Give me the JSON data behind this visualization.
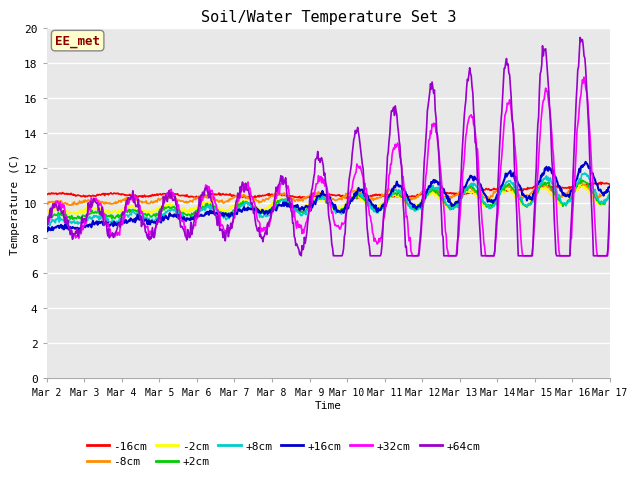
{
  "title": "Soil/Water Temperature Set 3",
  "xlabel": "Time",
  "ylabel": "Temperature (C)",
  "ylim": [
    0,
    20
  ],
  "yticks": [
    0,
    2,
    4,
    6,
    8,
    10,
    12,
    14,
    16,
    18,
    20
  ],
  "x_labels": [
    "Mar 2",
    "Mar 3",
    "Mar 4",
    "Mar 5",
    "Mar 6",
    "Mar 7",
    "Mar 8",
    "Mar 9",
    "Mar 10",
    "Mar 11",
    "Mar 12",
    "Mar 13",
    "Mar 14",
    "Mar 15",
    "Mar 16",
    "Mar 17"
  ],
  "annotation_text": "EE_met",
  "annotation_color": "#8B0000",
  "annotation_bg": "#FFFFCC",
  "series": {
    "-16cm": {
      "color": "#FF0000",
      "lw": 1.2
    },
    "-8cm": {
      "color": "#FF8C00",
      "lw": 1.2
    },
    "-2cm": {
      "color": "#FFFF00",
      "lw": 1.2
    },
    "+2cm": {
      "color": "#00CC00",
      "lw": 1.2
    },
    "+8cm": {
      "color": "#00CCCC",
      "lw": 1.2
    },
    "+16cm": {
      "color": "#0000CC",
      "lw": 1.5
    },
    "+32cm": {
      "color": "#FF00FF",
      "lw": 1.2
    },
    "+64cm": {
      "color": "#9900CC",
      "lw": 1.2
    }
  },
  "bg_color": "#E8E8E8",
  "grid_color": "#FFFFFF"
}
